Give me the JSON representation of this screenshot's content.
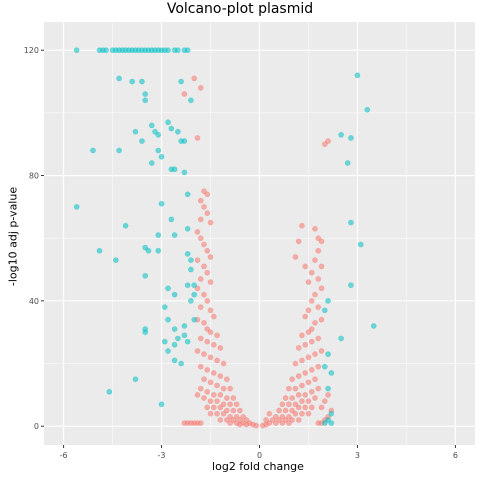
{
  "chart_data": {
    "type": "scatter",
    "title": "Volcano-plot plasmid",
    "xlabel": "log2 fold change",
    "ylabel": "-log10 adj p-value",
    "xlim": [
      -6.6,
      6.6
    ],
    "ylim": [
      -6,
      129
    ],
    "xticks": [
      -6,
      -3,
      0,
      3,
      6
    ],
    "xtick_labels": [
      "-6",
      "-3",
      "0",
      "3",
      "6"
    ],
    "yticks": [
      0,
      40,
      80,
      120
    ],
    "ytick_labels": [
      "0",
      "40",
      "80",
      "120"
    ],
    "grid": true,
    "legend": "none",
    "colors": {
      "significant": "#00BFC4",
      "not_significant": "#F8766D",
      "panel": "#EBEBEB",
      "grid": "#FFFFFF"
    },
    "series": [
      {
        "color": "#00BFC4",
        "points": [
          [
            -5.6,
            120
          ],
          [
            -4.9,
            120
          ],
          [
            -4.8,
            120
          ],
          [
            -4.7,
            120
          ],
          [
            -4.5,
            120
          ],
          [
            -4.4,
            120
          ],
          [
            -4.3,
            120
          ],
          [
            -4.2,
            120
          ],
          [
            -4.1,
            120
          ],
          [
            -4.0,
            120
          ],
          [
            -3.9,
            120
          ],
          [
            -3.8,
            120
          ],
          [
            -3.7,
            120
          ],
          [
            -3.6,
            120
          ],
          [
            -3.5,
            120
          ],
          [
            -3.4,
            120
          ],
          [
            -3.3,
            120
          ],
          [
            -3.2,
            120
          ],
          [
            -3.1,
            120
          ],
          [
            -3.0,
            120
          ],
          [
            -2.9,
            120
          ],
          [
            -2.8,
            120
          ],
          [
            -2.6,
            120
          ],
          [
            -2.5,
            120
          ],
          [
            -2.3,
            120
          ],
          [
            -2.2,
            120
          ],
          [
            -4.3,
            111
          ],
          [
            -3.9,
            110
          ],
          [
            -3.6,
            110
          ],
          [
            -3.5,
            106
          ],
          [
            -3.5,
            104
          ],
          [
            -2.4,
            110
          ],
          [
            -2.1,
            104
          ],
          [
            -3.8,
            94
          ],
          [
            -3.6,
            91
          ],
          [
            -3.3,
            96
          ],
          [
            -3.2,
            94
          ],
          [
            -3.1,
            93
          ],
          [
            -2.8,
            97
          ],
          [
            -2.7,
            95
          ],
          [
            -2.5,
            94
          ],
          [
            -2.4,
            91
          ],
          [
            -2.3,
            91
          ],
          [
            -5.1,
            88
          ],
          [
            -4.3,
            88
          ],
          [
            -3.1,
            88
          ],
          [
            -3.3,
            84
          ],
          [
            -3.0,
            86
          ],
          [
            -2.7,
            82
          ],
          [
            -2.6,
            82
          ],
          [
            -2.3,
            81
          ],
          [
            -3.0,
            71
          ],
          [
            -5.6,
            70
          ],
          [
            -2.2,
            74
          ],
          [
            -2.7,
            66
          ],
          [
            -2.2,
            63
          ],
          [
            -3.1,
            61
          ],
          [
            -2.6,
            61
          ],
          [
            -4.1,
            64
          ],
          [
            -4.9,
            56
          ],
          [
            -4.4,
            53
          ],
          [
            -3.5,
            57
          ],
          [
            -3.4,
            56
          ],
          [
            -3.1,
            56
          ],
          [
            -2.2,
            55
          ],
          [
            -2.1,
            53
          ],
          [
            -2.1,
            50
          ],
          [
            -3.5,
            48
          ],
          [
            -2.8,
            44
          ],
          [
            -2.6,
            42
          ],
          [
            -2.2,
            45
          ],
          [
            -2.0,
            45
          ],
          [
            -2.1,
            40
          ],
          [
            -2.0,
            42
          ],
          [
            -2.9,
            38
          ],
          [
            -2.8,
            34
          ],
          [
            -2.6,
            31
          ],
          [
            -2.3,
            32
          ],
          [
            -2.0,
            34
          ],
          [
            -3.5,
            30
          ],
          [
            -3.5,
            31
          ],
          [
            -2.9,
            27
          ],
          [
            -2.6,
            26
          ],
          [
            -2.5,
            28
          ],
          [
            -2.3,
            29
          ],
          [
            -2.2,
            27
          ],
          [
            -2.8,
            24
          ],
          [
            -2.6,
            21
          ],
          [
            -2.4,
            20
          ],
          [
            -3.8,
            15
          ],
          [
            -4.6,
            11
          ],
          [
            -3.0,
            7
          ],
          [
            3.0,
            112
          ],
          [
            3.3,
            101
          ],
          [
            2.5,
            93
          ],
          [
            2.8,
            92
          ],
          [
            2.7,
            84
          ],
          [
            2.8,
            65
          ],
          [
            3.1,
            58
          ],
          [
            2.8,
            45
          ],
          [
            3.5,
            32
          ],
          [
            2.1,
            40
          ],
          [
            2.0,
            37
          ],
          [
            2.5,
            28
          ],
          [
            2.1,
            23
          ],
          [
            2.0,
            19
          ],
          [
            2.2,
            17
          ],
          [
            2.1,
            12
          ],
          [
            2.2,
            4
          ],
          [
            2.1,
            2
          ],
          [
            2.0,
            1
          ],
          [
            2.2,
            1
          ]
        ]
      },
      {
        "color": "#F8766D",
        "points": [
          [
            -2.0,
            111
          ],
          [
            -1.8,
            108
          ],
          [
            -2.3,
            106
          ],
          [
            -1.9,
            92
          ],
          [
            -1.7,
            75
          ],
          [
            -1.6,
            74
          ],
          [
            -1.8,
            72
          ],
          [
            -1.7,
            70
          ],
          [
            -1.6,
            68
          ],
          [
            -1.8,
            66
          ],
          [
            -1.5,
            65
          ],
          [
            -1.9,
            62
          ],
          [
            -1.8,
            60
          ],
          [
            -1.7,
            58
          ],
          [
            -1.6,
            56
          ],
          [
            -1.5,
            54
          ],
          [
            -1.9,
            53
          ],
          [
            -1.7,
            51
          ],
          [
            -1.6,
            49
          ],
          [
            -1.8,
            47
          ],
          [
            -1.5,
            46
          ],
          [
            -1.9,
            44
          ],
          [
            -1.7,
            42
          ],
          [
            -1.6,
            40
          ],
          [
            -1.8,
            38
          ],
          [
            -1.5,
            37
          ],
          [
            -1.4,
            35
          ],
          [
            -1.9,
            34
          ],
          [
            -1.7,
            33
          ],
          [
            -1.6,
            31
          ],
          [
            -1.5,
            30
          ],
          [
            -1.3,
            29
          ],
          [
            -1.8,
            28
          ],
          [
            -1.6,
            27
          ],
          [
            -1.4,
            26
          ],
          [
            -1.2,
            25
          ],
          [
            -1.9,
            24
          ],
          [
            -1.7,
            23
          ],
          [
            -1.5,
            22
          ],
          [
            -1.3,
            21
          ],
          [
            -1.1,
            20
          ],
          [
            -1.8,
            19
          ],
          [
            -1.6,
            18
          ],
          [
            -1.4,
            17
          ],
          [
            -1.2,
            16
          ],
          [
            -1.0,
            15
          ],
          [
            -1.7,
            15
          ],
          [
            -1.5,
            14
          ],
          [
            -1.3,
            13
          ],
          [
            -1.1,
            12
          ],
          [
            -0.9,
            12
          ],
          [
            -1.8,
            12
          ],
          [
            -1.6,
            11
          ],
          [
            -1.4,
            10
          ],
          [
            -1.2,
            10
          ],
          [
            -1.0,
            9
          ],
          [
            -0.8,
            9
          ],
          [
            -1.9,
            10
          ],
          [
            -1.7,
            9
          ],
          [
            -1.5,
            8
          ],
          [
            -1.3,
            8
          ],
          [
            -1.1,
            7
          ],
          [
            -0.9,
            7
          ],
          [
            -0.7,
            7
          ],
          [
            -1.6,
            6
          ],
          [
            -1.4,
            6
          ],
          [
            -1.2,
            6
          ],
          [
            -1.0,
            5
          ],
          [
            -0.8,
            5
          ],
          [
            -0.6,
            5
          ],
          [
            -1.5,
            4
          ],
          [
            -1.3,
            4
          ],
          [
            -1.1,
            4
          ],
          [
            -0.9,
            3
          ],
          [
            -0.7,
            3
          ],
          [
            -0.5,
            3
          ],
          [
            -1.2,
            2
          ],
          [
            -1.0,
            2
          ],
          [
            -0.8,
            2
          ],
          [
            -0.6,
            2
          ],
          [
            -0.4,
            2
          ],
          [
            -0.9,
            1
          ],
          [
            -0.7,
            1
          ],
          [
            -0.5,
            1
          ],
          [
            -0.3,
            1
          ],
          [
            -0.2,
            0.5
          ],
          [
            -0.1,
            0.2
          ],
          [
            -0.6,
            0.5
          ],
          [
            -0.4,
            0.5
          ],
          [
            -2.2,
            1
          ],
          [
            -2.1,
            1
          ],
          [
            -2.0,
            1
          ],
          [
            -1.9,
            1
          ],
          [
            -1.8,
            1
          ],
          [
            -2.3,
            1
          ],
          [
            0.1,
            0.2
          ],
          [
            0.2,
            0.5
          ],
          [
            0.3,
            1
          ],
          [
            0.5,
            1
          ],
          [
            0.7,
            1
          ],
          [
            0.9,
            1
          ],
          [
            0.4,
            2
          ],
          [
            0.6,
            2
          ],
          [
            0.8,
            2
          ],
          [
            1.0,
            2
          ],
          [
            1.2,
            2
          ],
          [
            0.5,
            3
          ],
          [
            0.7,
            3
          ],
          [
            0.9,
            3
          ],
          [
            1.1,
            4
          ],
          [
            1.3,
            4
          ],
          [
            1.5,
            4
          ],
          [
            0.6,
            5
          ],
          [
            0.8,
            5
          ],
          [
            1.0,
            5
          ],
          [
            1.2,
            6
          ],
          [
            1.4,
            6
          ],
          [
            1.6,
            6
          ],
          [
            0.7,
            7
          ],
          [
            0.9,
            7
          ],
          [
            1.1,
            7
          ],
          [
            1.3,
            8
          ],
          [
            1.5,
            8
          ],
          [
            1.7,
            9
          ],
          [
            0.8,
            9
          ],
          [
            1.0,
            9
          ],
          [
            1.2,
            10
          ],
          [
            1.4,
            10
          ],
          [
            1.6,
            11
          ],
          [
            1.8,
            12
          ],
          [
            0.9,
            12
          ],
          [
            1.1,
            12
          ],
          [
            1.3,
            13
          ],
          [
            1.5,
            14
          ],
          [
            1.7,
            15
          ],
          [
            1.0,
            15
          ],
          [
            1.2,
            16
          ],
          [
            1.4,
            17
          ],
          [
            1.6,
            18
          ],
          [
            1.8,
            19
          ],
          [
            1.1,
            20
          ],
          [
            1.3,
            21
          ],
          [
            1.5,
            22
          ],
          [
            1.7,
            23
          ],
          [
            1.9,
            24
          ],
          [
            1.2,
            25
          ],
          [
            1.4,
            26
          ],
          [
            1.6,
            27
          ],
          [
            1.8,
            28
          ],
          [
            1.3,
            29
          ],
          [
            1.5,
            30
          ],
          [
            1.6,
            31
          ],
          [
            1.7,
            33
          ],
          [
            1.9,
            34
          ],
          [
            1.4,
            35
          ],
          [
            1.5,
            37
          ],
          [
            1.8,
            38
          ],
          [
            1.6,
            40
          ],
          [
            1.7,
            42
          ],
          [
            1.9,
            44
          ],
          [
            1.5,
            46
          ],
          [
            1.8,
            47
          ],
          [
            1.6,
            49
          ],
          [
            1.9,
            51
          ],
          [
            1.7,
            53
          ],
          [
            1.8,
            56
          ],
          [
            1.9,
            59
          ],
          [
            1.8,
            60
          ],
          [
            1.7,
            63
          ],
          [
            2.0,
            90
          ],
          [
            2.1,
            91
          ],
          [
            1.3,
            64
          ],
          [
            1.2,
            59
          ],
          [
            1.1,
            54
          ],
          [
            1.4,
            51
          ],
          [
            2.0,
            2
          ],
          [
            1.9,
            1
          ],
          [
            1.8,
            1
          ],
          [
            2.1,
            3
          ],
          [
            2.2,
            5
          ],
          [
            1.9,
            6
          ],
          [
            2.0,
            8
          ],
          [
            2.1,
            10
          ],
          [
            0.3,
            4
          ],
          [
            0.2,
            2
          ]
        ]
      }
    ]
  }
}
